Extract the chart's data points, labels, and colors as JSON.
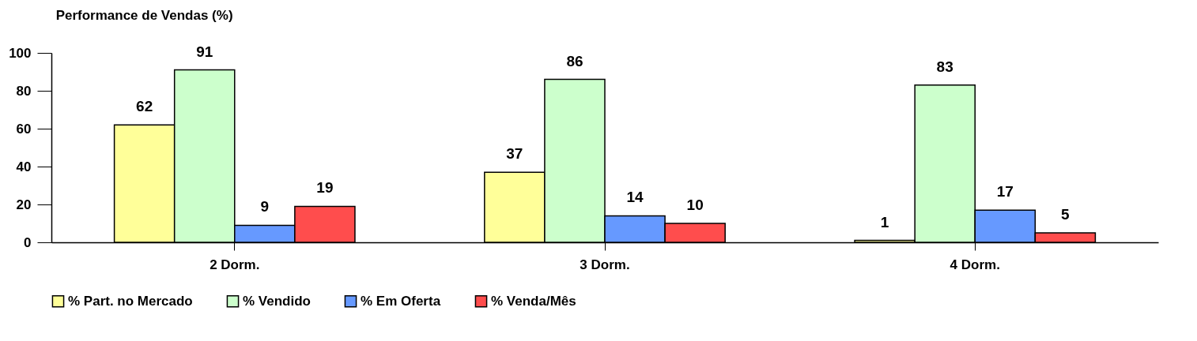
{
  "chart_data": {
    "type": "bar",
    "title": "Performance de Vendas (%)",
    "categories": [
      "2 Dorm.",
      "3 Dorm.",
      "4 Dorm."
    ],
    "series": [
      {
        "name": "% Part. no Mercado",
        "color": "#ffff99",
        "values": [
          62,
          37,
          1
        ]
      },
      {
        "name": "% Vendido",
        "color": "#ccffcc",
        "values": [
          91,
          86,
          83
        ]
      },
      {
        "name": "% Em Oferta",
        "color": "#6699ff",
        "values": [
          9,
          14,
          17
        ]
      },
      {
        "name": "% Venda/Mês",
        "color": "#ff4d4d",
        "values": [
          19,
          10,
          5
        ]
      }
    ],
    "ylim": [
      0,
      100
    ],
    "yticks": [
      0,
      20,
      40,
      60,
      80,
      100
    ],
    "grid": false,
    "legend": "bottom",
    "data_labels": true
  }
}
